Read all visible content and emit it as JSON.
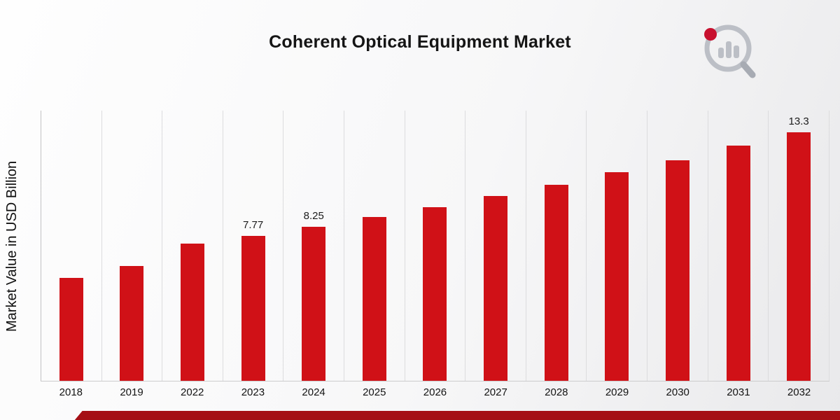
{
  "title": "Coherent Optical Equipment Market",
  "y_axis_label": "Market Value in USD Billion",
  "colors": {
    "bar": "#d01117",
    "footer_strip": "#a50f15"
  },
  "logo": {
    "name": "market-research-chart-logo"
  },
  "chart_data": {
    "type": "bar",
    "title": "Coherent Optical Equipment Market",
    "xlabel": "",
    "ylabel": "Market Value in USD Billion",
    "categories": [
      "2018",
      "2019",
      "2022",
      "2023",
      "2024",
      "2025",
      "2026",
      "2027",
      "2028",
      "2029",
      "2030",
      "2031",
      "2032"
    ],
    "values": [
      5.5,
      6.15,
      7.35,
      7.77,
      8.25,
      8.75,
      9.3,
      9.9,
      10.5,
      11.15,
      11.8,
      12.6,
      13.3
    ],
    "value_labels": [
      "",
      "",
      "",
      "7.77",
      "8.25",
      "",
      "",
      "",
      "",
      "",
      "",
      "",
      "13.3"
    ],
    "ylim": [
      0,
      14.5
    ],
    "grid": "vertical",
    "legend": "none",
    "bar_color": "#d01117"
  }
}
